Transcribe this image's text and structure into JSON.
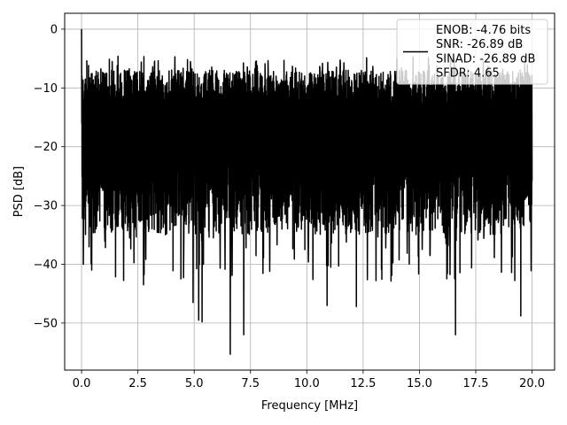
{
  "chart_data": {
    "type": "line",
    "xlabel": "Frequency [MHz]",
    "ylabel": "PSD [dB]",
    "xlim": [
      -0.75,
      21.0
    ],
    "ylim": [
      -58.0,
      2.7
    ],
    "xticks": [
      0.0,
      2.5,
      5.0,
      7.5,
      10.0,
      12.5,
      15.0,
      17.5,
      20.0
    ],
    "xtick_labels": [
      "0.0",
      "2.5",
      "5.0",
      "7.5",
      "10.0",
      "12.5",
      "15.0",
      "17.5",
      "20.0"
    ],
    "yticks": [
      0,
      -10,
      -20,
      -30,
      -40,
      -50
    ],
    "ytick_labels": [
      "0",
      "−10",
      "−20",
      "−30",
      "−40",
      "−50"
    ],
    "grid": true,
    "legend_position": "top-right",
    "series": [
      {
        "color": "#000000",
        "peak": {
          "x": 0.0,
          "y": 0.0
        },
        "x_range": [
          0.0,
          20.0
        ],
        "noise_band_db": [
          -35,
          -7
        ],
        "notable_dips": [
          {
            "x": 0.08,
            "y": -40
          },
          {
            "x": 0.45,
            "y": -41
          },
          {
            "x": 2.75,
            "y": -43.5
          },
          {
            "x": 4.95,
            "y": -46.5
          },
          {
            "x": 5.2,
            "y": -49.5
          },
          {
            "x": 5.35,
            "y": -49.8
          },
          {
            "x": 6.6,
            "y": -55.3
          },
          {
            "x": 7.2,
            "y": -52
          },
          {
            "x": 10.9,
            "y": -47
          },
          {
            "x": 12.2,
            "y": -47.2
          },
          {
            "x": 16.6,
            "y": -52
          },
          {
            "x": 19.5,
            "y": -48.8
          }
        ],
        "notable_peaks": [
          {
            "x": 7.8,
            "y": -6.2
          },
          {
            "x": 9.5,
            "y": -6.6
          },
          {
            "x": 14.2,
            "y": -6.6
          },
          {
            "x": 16.5,
            "y": -6.6
          }
        ]
      }
    ],
    "legend_entries": [
      "ENOB: -4.76 bits",
      "SNR: -26.89 dB",
      "SINAD: -26.89 dB",
      "SFDR: 4.65"
    ]
  }
}
